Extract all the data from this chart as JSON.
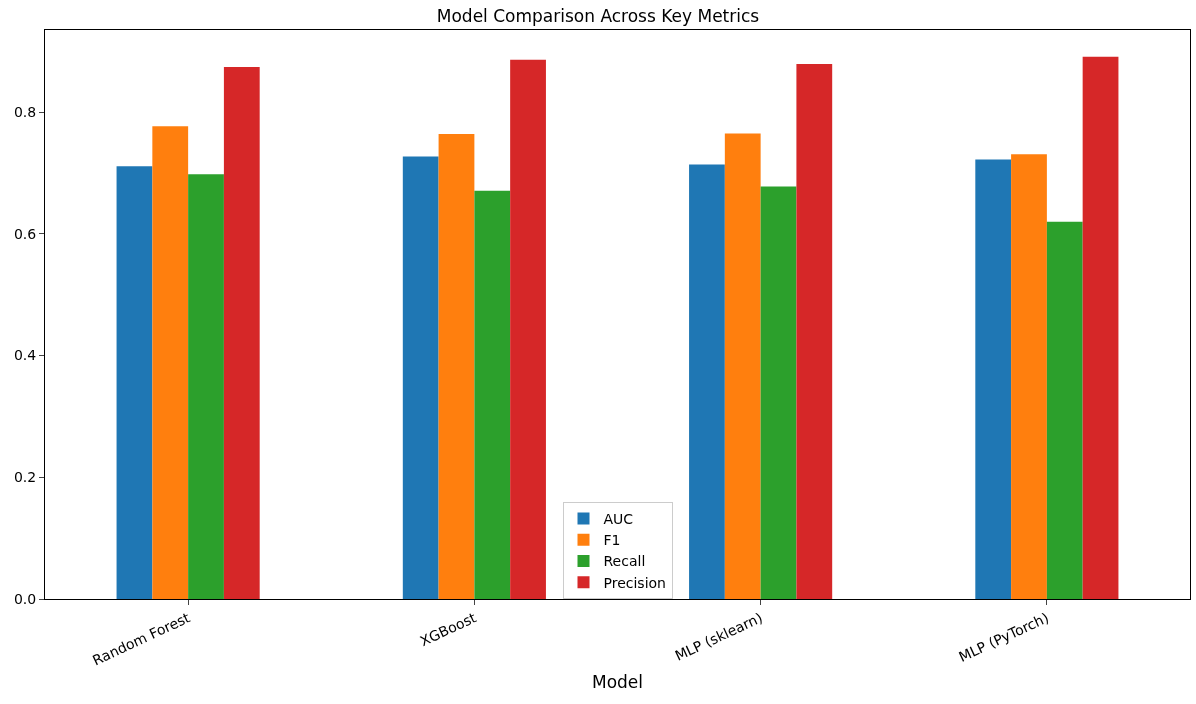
{
  "chart_data": {
    "type": "bar",
    "title": "Model Comparison Across Key Metrics",
    "xlabel": "Model",
    "categories": [
      "Random Forest",
      "XGBoost",
      "MLP (sklearn)",
      "MLP (PyTorch)"
    ],
    "series": [
      {
        "name": "AUC",
        "color": "#1f77b4",
        "values": [
          0.711,
          0.727,
          0.714,
          0.722
        ]
      },
      {
        "name": "F1",
        "color": "#ff7f0e",
        "values": [
          0.777,
          0.764,
          0.765,
          0.731
        ]
      },
      {
        "name": "Recall",
        "color": "#2ca02c",
        "values": [
          0.698,
          0.671,
          0.678,
          0.62
        ]
      },
      {
        "name": "Precision",
        "color": "#d62728",
        "values": [
          0.874,
          0.886,
          0.879,
          0.891
        ]
      }
    ],
    "ylim": [
      0,
      0.935
    ],
    "yticks": [
      {
        "value": 0,
        "label": "0.0"
      },
      0.2,
      0.4,
      0.6,
      0.8
    ],
    "grid": false,
    "legend": "bottom"
  }
}
